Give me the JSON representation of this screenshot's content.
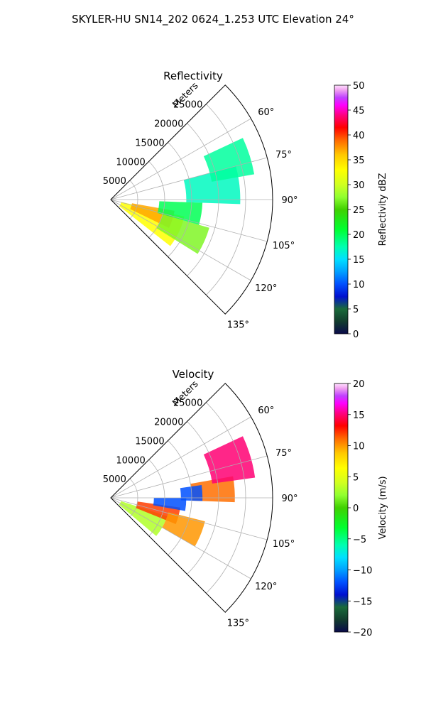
{
  "figure": {
    "title": "SKYLER-HU  SN14_202  0624_1.253 UTC Elevation 24°"
  },
  "chart_data": [
    {
      "type": "heatmap",
      "subtype": "polar-sector",
      "title": "Reflectivity",
      "range_label": "Meters",
      "range_ticks": [
        5000,
        10000,
        15000,
        20000,
        25000
      ],
      "range_max": 30000,
      "azimuth_range_deg": [
        45,
        135
      ],
      "azimuth_ticks": [
        "60°",
        "75°",
        "90°",
        "105°",
        "120°",
        "135°"
      ],
      "grid": true,
      "colorbar": {
        "label": "Reflectivity dBZ",
        "min": 0,
        "max": 50,
        "ticks": [
          0,
          5,
          10,
          15,
          20,
          25,
          30,
          35,
          40,
          45,
          50
        ]
      },
      "echo_regions": [
        {
          "azimuth_deg": [
            103,
            128
          ],
          "range_m": [
            2000,
            14000
          ],
          "value": 33
        },
        {
          "azimuth_deg": [
            100,
            116
          ],
          "range_m": [
            4000,
            12000
          ],
          "value": 37
        },
        {
          "azimuth_deg": [
            106,
            122
          ],
          "range_m": [
            10000,
            19000
          ],
          "value": 27
        },
        {
          "azimuth_deg": [
            92,
            106
          ],
          "range_m": [
            9000,
            17000
          ],
          "value": 20
        },
        {
          "azimuth_deg": [
            75,
            92
          ],
          "range_m": [
            14000,
            24000
          ],
          "value": 17
        },
        {
          "azimuth_deg": [
            65,
            80
          ],
          "range_m": [
            19000,
            27000
          ],
          "value": 18
        }
      ]
    },
    {
      "type": "heatmap",
      "subtype": "polar-sector",
      "title": "Velocity",
      "range_label": "Meters",
      "range_ticks": [
        5000,
        10000,
        15000,
        20000,
        25000
      ],
      "range_max": 30000,
      "azimuth_range_deg": [
        45,
        135
      ],
      "azimuth_ticks": [
        "60°",
        "75°",
        "90°",
        "105°",
        "120°",
        "135°"
      ],
      "grid": true,
      "colorbar": {
        "label": "Velocity (m/s)",
        "min": -20,
        "max": 20,
        "ticks": [
          -20,
          -15,
          -10,
          -5,
          0,
          5,
          10,
          15,
          20
        ]
      },
      "echo_regions": [
        {
          "azimuth_deg": [
            108,
            130
          ],
          "range_m": [
            2000,
            11000
          ],
          "value": 3
        },
        {
          "azimuth_deg": [
            98,
            112
          ],
          "range_m": [
            5000,
            13000
          ],
          "value": 12
        },
        {
          "azimuth_deg": [
            104,
            120
          ],
          "range_m": [
            11000,
            18000
          ],
          "value": 10
        },
        {
          "azimuth_deg": [
            90,
            100
          ],
          "range_m": [
            8000,
            14000
          ],
          "value": -12
        },
        {
          "azimuth_deg": [
            80,
            92
          ],
          "range_m": [
            15000,
            23000
          ],
          "value": 11
        },
        {
          "azimuth_deg": [
            65,
            82
          ],
          "range_m": [
            19000,
            27000
          ],
          "value": 15
        },
        {
          "azimuth_deg": [
            82,
            92
          ],
          "range_m": [
            13000,
            17000
          ],
          "value": -12
        }
      ]
    }
  ]
}
